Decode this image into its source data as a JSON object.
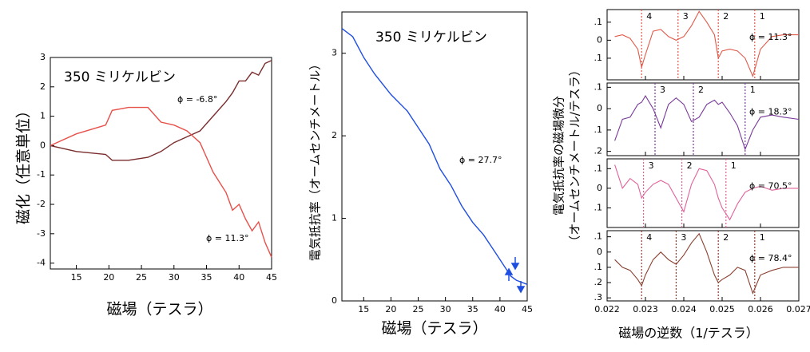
{
  "chart_data": [
    {
      "type": "line",
      "title": "350 ミリケルビン",
      "xlabel": "磁場（テスラ）",
      "ylabel": "磁化（任意単位）",
      "xlim": [
        11,
        45
      ],
      "xticks": [
        15,
        20,
        25,
        30,
        35,
        40,
        45
      ],
      "ylim": [
        -4.2,
        3
      ],
      "yticks": [
        -4,
        -3,
        -2,
        -1,
        0,
        1,
        2,
        3
      ],
      "x": [
        11,
        15,
        19.5,
        20.5,
        23,
        26,
        28,
        30,
        32,
        34,
        36,
        38,
        39,
        40,
        41,
        42,
        43,
        44,
        45
      ],
      "series": [
        {
          "name": "ϕ = -6.8°",
          "color": "#7a2c2c",
          "values": [
            0,
            -0.2,
            -0.3,
            -0.5,
            -0.5,
            -0.4,
            -0.2,
            0.1,
            0.3,
            0.5,
            1.0,
            1.5,
            1.8,
            2.2,
            2.2,
            2.5,
            2.4,
            2.8,
            2.9
          ]
        },
        {
          "name": "ϕ = 11.3°",
          "color": "#e8504a",
          "values": [
            0,
            0.4,
            0.7,
            1.2,
            1.3,
            1.3,
            0.8,
            0.7,
            0.5,
            0.1,
            -0.9,
            -1.6,
            -2.2,
            -2.0,
            -2.5,
            -2.9,
            -2.6,
            -3.3,
            -3.8
          ]
        }
      ]
    },
    {
      "type": "line",
      "title": "350 ミリケルビン",
      "xlabel": "磁場（テスラ）",
      "ylabel": "電気抵抗率（オームセンチメートル）",
      "xlim": [
        11,
        45
      ],
      "xticks": [
        15,
        20,
        25,
        30,
        35,
        40,
        45
      ],
      "ylim": [
        0,
        3.5
      ],
      "yticks": [
        0,
        1,
        2,
        3
      ],
      "x": [
        11,
        13,
        15,
        17,
        20,
        23,
        25,
        27,
        29,
        31,
        33,
        35,
        37,
        39,
        41,
        42,
        43,
        45
      ],
      "series": [
        {
          "name": "ϕ = 27.7°",
          "color": "#1f4fe0",
          "values": [
            3.3,
            3.2,
            2.95,
            2.75,
            2.5,
            2.3,
            2.1,
            1.9,
            1.6,
            1.4,
            1.15,
            0.95,
            0.8,
            0.6,
            0.4,
            0.3,
            0.25,
            0.2
          ]
        }
      ]
    },
    {
      "type": "stacked-panels",
      "xlabel": "磁場の逆数（1/テスラ）",
      "ylabel": [
        "電気抵抗率の磁場微分",
        "（オームセンチメートル/テスラ）"
      ],
      "xlim": [
        0.022,
        0.027
      ],
      "xticks": [
        0.022,
        0.023,
        0.024,
        0.025,
        0.026,
        0.027
      ],
      "x": [
        0.0222,
        0.0224,
        0.0226,
        0.0228,
        0.0229,
        0.023,
        0.0232,
        0.0234,
        0.0236,
        0.0238,
        0.024,
        0.0242,
        0.0244,
        0.0246,
        0.0248,
        0.0249,
        0.025,
        0.0252,
        0.0254,
        0.0256,
        0.0258,
        0.026,
        0.0263,
        0.0266,
        0.027
      ],
      "panels": [
        {
          "ylim": [
            -0.22,
            0.17
          ],
          "yticks": [
            {
              "value": 0.1,
              "label": ".1"
            },
            0,
            {
              "value": -0.1,
              "label": ".1"
            }
          ],
          "series": [
            {
              "name": "ϕ = 11.3°",
              "color": "#e05a4a",
              "values": [
                0.02,
                0.03,
                0.01,
                -0.05,
                -0.15,
                -0.08,
                0.05,
                0.06,
                0.02,
                0.0,
                0.02,
                0.08,
                0.16,
                0.1,
                0.03,
                -0.1,
                -0.06,
                -0.05,
                -0.06,
                -0.1,
                -0.2,
                -0.05,
                0.02,
                0.03,
                0.03
              ]
            }
          ],
          "markers": [
            {
              "label": "4",
              "x": 0.0229
            },
            {
              "label": "3",
              "x": 0.02385
            },
            {
              "label": "2",
              "x": 0.0249
            },
            {
              "label": "1",
              "x": 0.02585
            }
          ]
        },
        {
          "ylim": [
            -0.22,
            0.12
          ],
          "yticks": [
            {
              "value": 0.1,
              "label": ".1"
            },
            0,
            {
              "value": -0.1,
              "label": ".1"
            },
            {
              "value": -0.2,
              "label": ".2"
            }
          ],
          "series": [
            {
              "name": "ϕ = 18.3°",
              "color": "#7a3a9a",
              "values": [
                -0.15,
                -0.05,
                -0.04,
                0.02,
                0.03,
                0.06,
                0.0,
                -0.09,
                0.02,
                0.05,
                0.02,
                -0.06,
                -0.04,
                0.02,
                0.04,
                0.02,
                0.03,
                -0.02,
                -0.08,
                -0.19,
                -0.1,
                -0.04,
                -0.03,
                -0.04,
                -0.05
              ]
            }
          ],
          "markers": [
            {
              "label": "3",
              "x": 0.02325
            },
            {
              "label": "2",
              "x": 0.02425
            },
            {
              "label": "1",
              "x": 0.0256
            }
          ]
        },
        {
          "ylim": [
            -0.2,
            0.15
          ],
          "yticks": [
            {
              "value": 0.1,
              "label": ".1"
            },
            0,
            {
              "value": -0.1,
              "label": ".1"
            }
          ],
          "series": [
            {
              "name": "ϕ = 70.5°",
              "color": "#e0609a",
              "values": [
                0.12,
                0.0,
                0.05,
                0.02,
                -0.05,
                -0.02,
                0.02,
                0.04,
                0.02,
                -0.05,
                -0.12,
                0.02,
                0.1,
                0.09,
                0.02,
                -0.05,
                -0.1,
                -0.16,
                -0.08,
                -0.02,
                0.0,
                0.01,
                -0.01,
                0.0,
                0.0
              ]
            }
          ],
          "markers": [
            {
              "label": "3",
              "x": 0.02295
            },
            {
              "label": "2",
              "x": 0.02395
            },
            {
              "label": "1",
              "x": 0.0251
            }
          ]
        },
        {
          "ylim": [
            -0.32,
            0.14
          ],
          "yticks": [
            {
              "value": 0.1,
              "label": ".1"
            },
            0,
            {
              "value": -0.1,
              "label": ".1"
            },
            {
              "value": -0.2,
              "label": ".2"
            },
            {
              "value": -0.3,
              "label": ".3"
            }
          ],
          "series": [
            {
              "name": "ϕ = 78.4°",
              "color": "#8a4030",
              "values": [
                -0.05,
                -0.1,
                -0.12,
                -0.18,
                -0.22,
                -0.15,
                -0.05,
                0.0,
                -0.05,
                -0.08,
                -0.02,
                0.06,
                0.12,
                0.0,
                -0.15,
                -0.2,
                -0.18,
                -0.15,
                -0.1,
                -0.12,
                -0.27,
                -0.15,
                -0.12,
                -0.1,
                -0.1
              ]
            }
          ],
          "markers": [
            {
              "label": "4",
              "x": 0.0229
            },
            {
              "label": "3",
              "x": 0.0238
            },
            {
              "label": "2",
              "x": 0.0249
            },
            {
              "label": "1",
              "x": 0.02585
            }
          ]
        }
      ]
    }
  ]
}
